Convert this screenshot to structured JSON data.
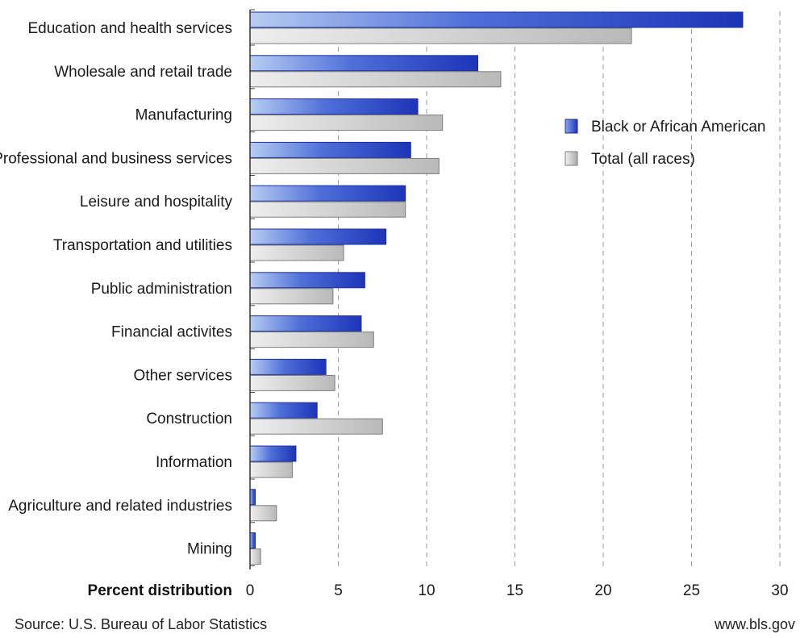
{
  "chart_data": {
    "type": "bar",
    "orientation": "horizontal",
    "categories": [
      "Education and health services",
      "Wholesale and retail trade",
      "Manufacturing",
      "Professional and business services",
      "Leisure and hospitality",
      "Transportation and utilities",
      "Public administration",
      "Financial activites",
      "Other services",
      "Construction",
      "Information",
      "Agriculture and related industries",
      "Mining"
    ],
    "series": [
      {
        "name": "Black or African American",
        "color": "#1f3fbf",
        "values": [
          27.9,
          12.9,
          9.5,
          9.1,
          8.8,
          7.7,
          6.5,
          6.3,
          4.3,
          3.8,
          2.6,
          0.3,
          0.3
        ]
      },
      {
        "name": "Total (all races)",
        "color": "#b8b8b8",
        "values": [
          21.6,
          14.2,
          10.9,
          10.7,
          8.8,
          5.3,
          4.7,
          7.0,
          4.8,
          7.5,
          2.4,
          1.5,
          0.6
        ]
      }
    ],
    "xlabel": "Percent distribution",
    "xlim": [
      0,
      30
    ],
    "xticks": [
      0,
      5,
      10,
      15,
      20,
      25,
      30
    ],
    "grid": "vertical-dashed",
    "legend_position": "right"
  },
  "footer": {
    "source": "Source: U.S. Bureau of Labor Statistics",
    "credit": "www.bls.gov"
  }
}
